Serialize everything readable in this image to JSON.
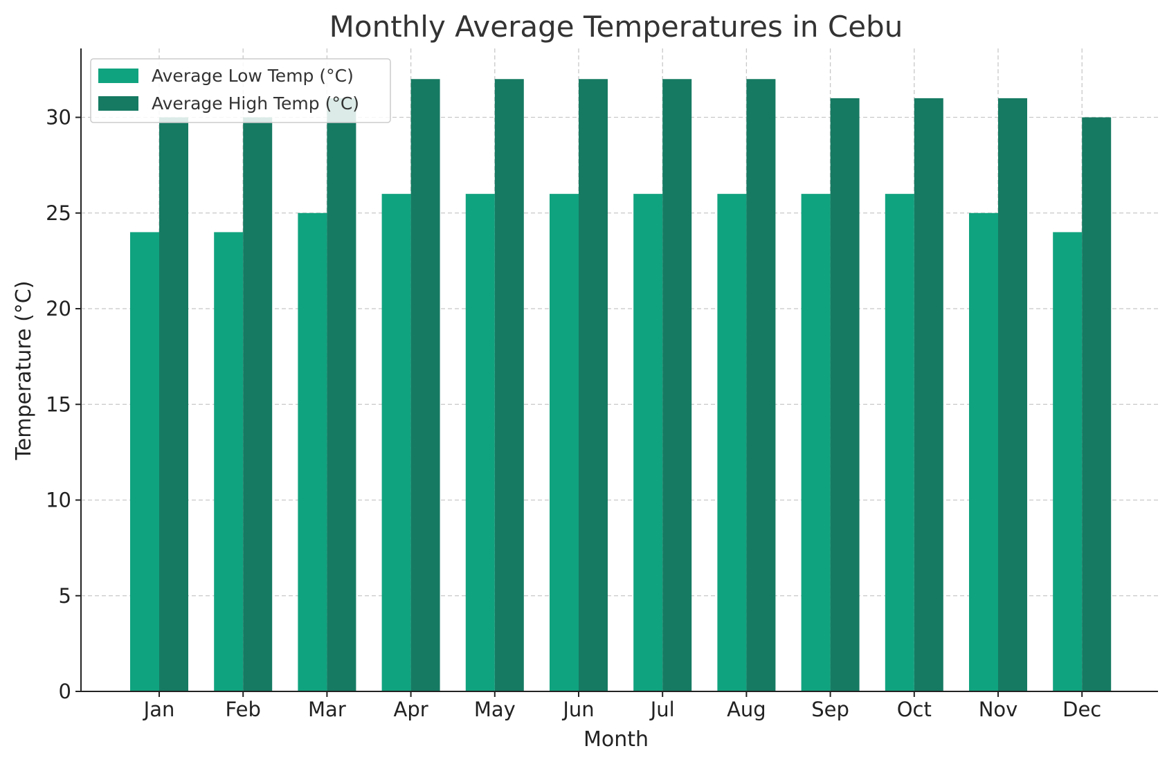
{
  "chart_data": {
    "type": "bar",
    "title": "Monthly Average Temperatures in Cebu",
    "xlabel": "Month",
    "ylabel": "Temperature (°C)",
    "categories": [
      "Jan",
      "Feb",
      "Mar",
      "Apr",
      "May",
      "Jun",
      "Jul",
      "Aug",
      "Sep",
      "Oct",
      "Nov",
      "Dec"
    ],
    "series": [
      {
        "name": "Average Low Temp (°C)",
        "values": [
          24,
          24,
          25,
          26,
          26,
          26,
          26,
          26,
          26,
          26,
          25,
          24
        ],
        "color": "#10a37f"
      },
      {
        "name": "Average High Temp (°C)",
        "values": [
          30,
          30,
          31,
          32,
          32,
          32,
          32,
          32,
          31,
          31,
          31,
          30
        ],
        "color": "#167a62"
      }
    ],
    "ylim": [
      0,
      33.6
    ],
    "yticks": [
      "0",
      "5",
      "10",
      "15",
      "20",
      "25",
      "30"
    ],
    "grid": true,
    "legend_position": "top-left"
  }
}
